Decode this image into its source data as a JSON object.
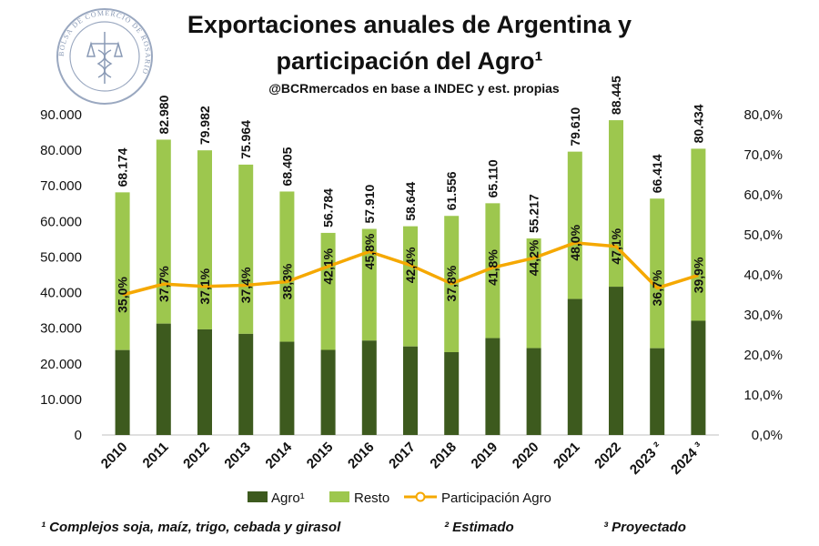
{
  "chart_data": {
    "type": "bar",
    "title_line1": "Exportaciones anuales de Argentina y",
    "title_line2": "participación del Agro¹",
    "subtitle": "@BCRmercados  en base a INDEC y est. propias",
    "categories": [
      "2010",
      "2011",
      "2012",
      "2013",
      "2014",
      "2015",
      "2016",
      "2017",
      "2018",
      "2019",
      "2020",
      "2021",
      "2022",
      "2023 ²",
      "2024 ³"
    ],
    "totals": [
      68174,
      82980,
      79982,
      75964,
      68405,
      56784,
      57910,
      58644,
      61556,
      65110,
      55217,
      79610,
      88445,
      66414,
      80434
    ],
    "total_labels": [
      "68.174",
      "82.980",
      "79.982",
      "75.964",
      "68.405",
      "56.784",
      "57.910",
      "58.644",
      "61.556",
      "65.110",
      "55.217",
      "79.610",
      "88.445",
      "66.414",
      "80.434"
    ],
    "share": [
      35.0,
      37.7,
      37.1,
      37.4,
      38.3,
      42.1,
      45.8,
      42.4,
      37.8,
      41.8,
      44.2,
      48.0,
      47.1,
      36.7,
      39.9
    ],
    "share_labels": [
      "35,0%",
      "37,7%",
      "37,1%",
      "37,4%",
      "38,3%",
      "42,1%",
      "45,8%",
      "42,4%",
      "37,8%",
      "41,8%",
      "44,2%",
      "48,0%",
      "47,1%",
      "36,7%",
      "39,9%"
    ],
    "series": [
      {
        "name": "Agro¹",
        "color": "#3d5a1e"
      },
      {
        "name": "Resto",
        "color": "#9dc74e"
      },
      {
        "name": "Participación Agro",
        "color": "#f5a800"
      }
    ],
    "y_left": {
      "min": 0,
      "max": 90000,
      "step": 10000,
      "ticks": [
        "0",
        "10.000",
        "20.000",
        "30.000",
        "40.000",
        "50.000",
        "60.000",
        "70.000",
        "80.000",
        "90.000"
      ]
    },
    "y_right": {
      "min": 0,
      "max": 80,
      "step": 10,
      "ticks": [
        "0,0%",
        "10,0%",
        "20,0%",
        "30,0%",
        "40,0%",
        "50,0%",
        "60,0%",
        "70,0%",
        "80,0%"
      ]
    },
    "grid": false,
    "legend_position": "bottom"
  },
  "footnotes": {
    "note1": "¹ Complejos soja, maíz, trigo, cebada y girasol",
    "note2": "² Estimado",
    "note3": "³ Proyectado"
  },
  "logo": {
    "text": "BOLSA DE COMERCIO DE ROSARIO"
  }
}
